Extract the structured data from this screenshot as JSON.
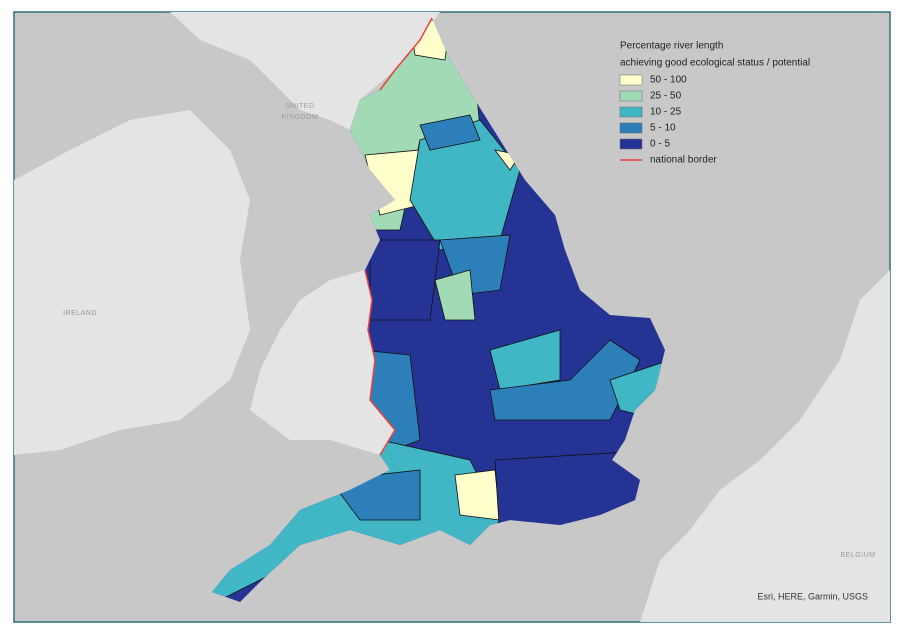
{
  "legend": {
    "title": [
      "Percentage river length",
      "achieving good ecological status / potential"
    ],
    "items": [
      {
        "label": "50 - 100",
        "color": "#ffffcc"
      },
      {
        "label": "25 - 50",
        "color": "#a1dab4"
      },
      {
        "label": "10 - 25",
        "color": "#41b6c4"
      },
      {
        "label": "5 - 10",
        "color": "#2c7fb8"
      },
      {
        "label": "0 - 5",
        "color": "#253494"
      }
    ],
    "border": {
      "label": "national border",
      "color": "#e8413c"
    }
  },
  "labels": {
    "uk": [
      "UNITED",
      "KINGDOM"
    ],
    "ireland": "IRELAND",
    "belgium": "BELGIUM"
  },
  "attribution": "Esri, HERE, Garmin, USGS"
}
